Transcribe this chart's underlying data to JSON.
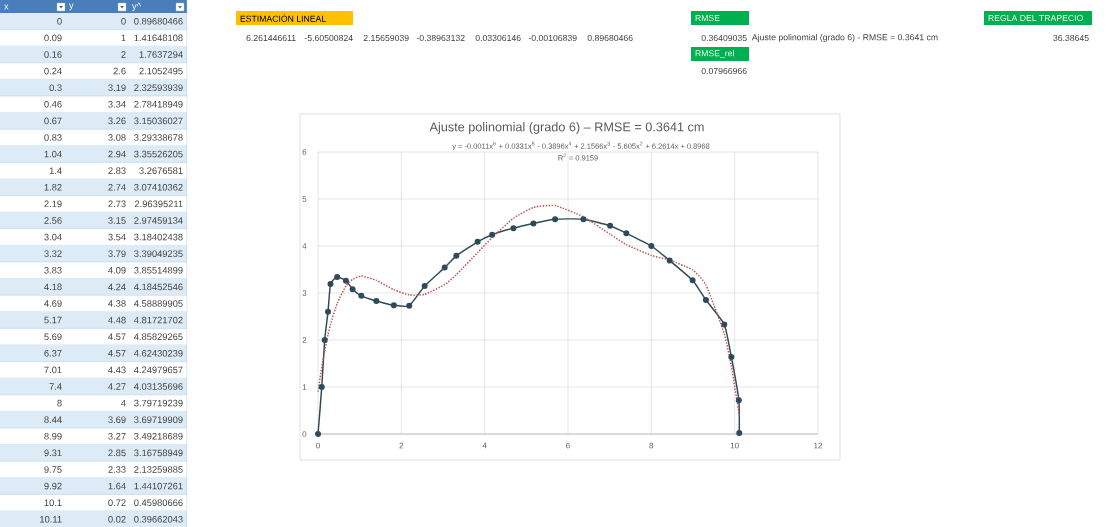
{
  "chart_data": [
    {
      "type": "other",
      "annotations": [
        "x",
        "y",
        "y^",
        "0",
        "0",
        "0.89680466",
        "0.09",
        "1",
        "1.41648108",
        "0.16",
        "2",
        "1.7637294",
        "0.24",
        "2.6",
        "2.1052495",
        "0.3",
        "3.19",
        "2.32593939",
        "0.46",
        "3.34",
        "2.78418949",
        "0.67",
        "3.26",
        "3.15036027",
        "0.83",
        "3.08",
        "3.29338678",
        "1.04",
        "2.94",
        "3.35526205",
        "1.4",
        "2.83",
        "3.2676581",
        "1.82",
        "2.74",
        "3.07410362",
        "2.19",
        "2.73",
        "2.96395211",
        "2.56",
        "3.15",
        "2.97459134",
        "3.04",
        "3.54",
        "3.18402438",
        "3.32",
        "3.79",
        "3.39049235",
        "3.83",
        "4.09",
        "3.85514899",
        "4.18",
        "4.24",
        "4.18452546",
        "4.69",
        "4.38",
        "4.58889905",
        "5.17",
        "4.48",
        "4.81721702",
        "5.69",
        "4.57",
        "4.85829265",
        "6.37",
        "4.57",
        "4.62430239",
        "7.01",
        "4.43",
        "4.24979657",
        "7.4",
        "4.27",
        "4.03135696",
        "8",
        "4",
        "3.79719239",
        "8.44",
        "3.69",
        "3.69719909",
        "8.99",
        "3.27",
        "3.49218689",
        "9.31",
        "2.85",
        "3.16758949",
        "9.75",
        "2.33",
        "2.13259885",
        "9.92",
        "1.64",
        "1.44107261",
        "10.1",
        "0.72",
        "0.45980666",
        "10.11",
        "0.02",
        "0.39662043"
      ]
    },
    {
      "type": "other",
      "annotations": [
        "ESTIMACIÓN LINEAL",
        "6.261446611",
        "-5.60500824",
        "2.15659039",
        "-0.38963132",
        "0.03306146",
        "-0.00106839",
        "0.89680466",
        "RMSE",
        "0.36409035",
        "Ajuste polinomial (grado 6) - RMSE = 0.3641 cm",
        "RMSE_rel",
        "0.07966966",
        "REGLA DEL TRAPECIO",
        "36.38645"
      ]
    },
    {
      "type": "line",
      "title": "Ajuste polinomial (grado 6) – RMSE = 0.3641 cm",
      "x": [
        0,
        0.09,
        0.16,
        0.24,
        0.3,
        0.46,
        0.67,
        0.83,
        1.04,
        1.4,
        1.82,
        2.19,
        2.56,
        3.04,
        3.32,
        3.83,
        4.18,
        4.69,
        5.17,
        5.69,
        6.37,
        7.01,
        7.4,
        8,
        8.44,
        8.99,
        9.31,
        9.75,
        9.92,
        10.1,
        10.11
      ],
      "series": [
        {
          "color": "#2f4a58",
          "marker": "circle",
          "line_style": "solid",
          "values": [
            0,
            1,
            2,
            2.6,
            3.19,
            3.34,
            3.26,
            3.08,
            2.94,
            2.83,
            2.74,
            2.73,
            3.15,
            3.54,
            3.79,
            4.09,
            4.24,
            4.38,
            4.48,
            4.57,
            4.57,
            4.43,
            4.27,
            4,
            3.69,
            3.27,
            2.85,
            2.33,
            1.64,
            0.72,
            0.02
          ]
        },
        {
          "type": "line",
          "color": "#c0504d",
          "marker": "none",
          "line_style": "dotted",
          "values": [
            0.9,
            1.42,
            1.76,
            2.11,
            2.33,
            2.78,
            3.15,
            3.29,
            3.36,
            3.27,
            3.07,
            2.96,
            2.97,
            3.18,
            3.39,
            3.86,
            4.18,
            4.59,
            4.82,
            4.86,
            4.62,
            4.25,
            4.03,
            3.8,
            3.7,
            3.49,
            3.17,
            2.13,
            1.44,
            0.46,
            0.4
          ]
        }
      ],
      "xlim": [
        0,
        12
      ],
      "xticks": [
        0,
        2,
        4,
        6,
        8,
        10,
        12
      ],
      "ylim": [
        0,
        6
      ],
      "yticks": [
        0,
        1,
        2,
        3,
        4,
        5,
        6
      ],
      "grid": true,
      "annotations": [
        "y = -0.0011x$^{6}$ + 0.0331x$^{5}$ - 0.3896x$^{4}$ + 2.1566x$^{3}$ - 5.605x$^{2}$ + 6.2614x + 0.8968",
        "R$^{2}$ = 0.9159"
      ]
    }
  ]
}
